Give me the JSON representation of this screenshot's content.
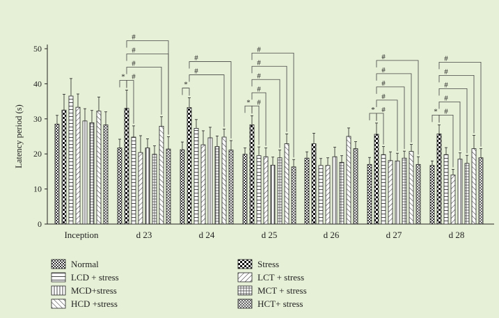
{
  "chart_data": {
    "type": "bar",
    "title": "",
    "xlabel": "",
    "ylabel": "Latency period (s)",
    "ylim": [
      0,
      50
    ],
    "yticks": [
      "0",
      "10",
      "20",
      "30",
      "40",
      "50"
    ],
    "categories": [
      "Inception",
      "d 23",
      "d 24",
      "d 25",
      "d 26",
      "d 27",
      "d 28"
    ],
    "legend_position": "bottom",
    "series": [
      {
        "name": "Normal",
        "pattern": "checker-fine",
        "values": [
          28.5,
          21.7,
          21.2,
          19.9,
          18.8,
          17.0,
          16.7
        ],
        "errors": [
          2.5,
          2.5,
          2.2,
          1.8,
          1.8,
          2.0,
          1.3
        ]
      },
      {
        "name": "Stress",
        "pattern": "checker-bold",
        "values": [
          32.5,
          33.0,
          33.2,
          28.3,
          22.9,
          25.6,
          25.7
        ],
        "errors": [
          4.5,
          5.2,
          2.8,
          2.6,
          3.0,
          3.2,
          2.6
        ]
      },
      {
        "name": "LCD + stress",
        "pattern": "hlines",
        "values": [
          36.5,
          24.8,
          27.3,
          19.5,
          16.7,
          19.8,
          19.8
        ],
        "errors": [
          5.0,
          3.2,
          2.5,
          2.5,
          2.0,
          2.3,
          2.0
        ]
      },
      {
        "name": "LCT + stress",
        "pattern": "diag-back",
        "values": [
          33.3,
          20.4,
          22.6,
          19.2,
          16.7,
          18.1,
          14.0
        ],
        "errors": [
          3.8,
          4.8,
          4.0,
          2.5,
          2.2,
          2.5,
          1.6
        ]
      },
      {
        "name": "MCD+stress",
        "pattern": "vlines",
        "values": [
          29.4,
          21.7,
          24.6,
          16.8,
          19.2,
          18.0,
          18.5
        ],
        "errors": [
          3.5,
          2.6,
          3.0,
          2.3,
          2.7,
          2.2,
          1.8
        ]
      },
      {
        "name": "MCT + stress",
        "pattern": "grid",
        "values": [
          28.9,
          19.9,
          22.1,
          18.9,
          17.6,
          18.8,
          17.3
        ],
        "errors": [
          3.5,
          2.4,
          3.0,
          2.2,
          1.9,
          2.0,
          2.3
        ]
      },
      {
        "name": "HCD +stress",
        "pattern": "diag-fwd",
        "values": [
          32.2,
          27.9,
          24.8,
          22.9,
          25.0,
          20.7,
          21.5
        ],
        "errors": [
          4.0,
          2.7,
          2.3,
          2.8,
          2.4,
          2.0,
          3.8
        ]
      },
      {
        "name": "HCT+ stress",
        "pattern": "crosshatch",
        "values": [
          28.3,
          21.4,
          21.1,
          16.3,
          21.5,
          17.0,
          18.9
        ],
        "errors": [
          3.7,
          3.5,
          2.7,
          2.1,
          2.0,
          2.2,
          2.6
        ]
      }
    ],
    "annotations": [
      {
        "category": "d 23",
        "from": "Normal",
        "to": "Stress",
        "label": "*",
        "level": 1
      },
      {
        "category": "d 23",
        "from": "Stress",
        "to": "LCD + stress",
        "label": "#",
        "level": 1
      },
      {
        "category": "d 23",
        "from": "Stress",
        "to": "HCD +stress",
        "label": "#",
        "level": 2
      },
      {
        "category": "d 23",
        "from": "Stress",
        "to": "HCT+ stress",
        "label": "#",
        "level": 3
      },
      {
        "category": "d 23",
        "from": "Stress",
        "to": "HCT+ stress",
        "label": "#",
        "level": 4
      },
      {
        "category": "d 24",
        "from": "Normal",
        "to": "Stress",
        "label": "*",
        "level": 1
      },
      {
        "category": "d 24",
        "from": "Stress",
        "to": "HCD +stress",
        "label": "#",
        "level": 2
      },
      {
        "category": "d 24",
        "from": "Stress",
        "to": "HCT+ stress",
        "label": "#",
        "level": 3
      },
      {
        "category": "d 25",
        "from": "Normal",
        "to": "Stress",
        "label": "*",
        "level": 1
      },
      {
        "category": "d 25",
        "from": "Stress",
        "to": "LCD + stress",
        "label": "#",
        "level": 1
      },
      {
        "category": "d 25",
        "from": "Stress",
        "to": "LCT + stress",
        "label": "#",
        "level": 2
      },
      {
        "category": "d 25",
        "from": "Stress",
        "to": "MCT + stress",
        "label": "#",
        "level": 3
      },
      {
        "category": "d 25",
        "from": "Stress",
        "to": "HCD +stress",
        "label": "#",
        "level": 4
      },
      {
        "category": "d 25",
        "from": "Stress",
        "to": "HCT+ stress",
        "label": "#",
        "level": 5
      },
      {
        "category": "d 27",
        "from": "Normal",
        "to": "Stress",
        "label": "*",
        "level": 1
      },
      {
        "category": "d 27",
        "from": "Stress",
        "to": "LCD + stress",
        "label": "#",
        "level": 1
      },
      {
        "category": "d 27",
        "from": "Stress",
        "to": "MCD+stress",
        "label": "#",
        "level": 2
      },
      {
        "category": "d 27",
        "from": "Stress",
        "to": "MCT + stress",
        "label": "#",
        "level": 3
      },
      {
        "category": "d 27",
        "from": "Stress",
        "to": "HCD +stress",
        "label": "#",
        "level": 4
      },
      {
        "category": "d 27",
        "from": "Stress",
        "to": "HCT+ stress",
        "label": "#",
        "level": 5
      },
      {
        "category": "d 28",
        "from": "Normal",
        "to": "Stress",
        "label": "*",
        "level": 1
      },
      {
        "category": "d 28",
        "from": "Stress",
        "to": "LCT + stress",
        "label": "#",
        "level": 1
      },
      {
        "category": "d 28",
        "from": "Stress",
        "to": "MCD+stress",
        "label": "#",
        "level": 2
      },
      {
        "category": "d 28",
        "from": "Stress",
        "to": "MCT + stress",
        "label": "#",
        "level": 3
      },
      {
        "category": "d 28",
        "from": "Stress",
        "to": "HCD +stress",
        "label": "#",
        "level": 4
      },
      {
        "category": "d 28",
        "from": "Stress",
        "to": "HCT+ stress",
        "label": "#",
        "level": 5
      }
    ],
    "legend_order": [
      "Normal",
      "Stress",
      "LCD + stress",
      "LCT + stress",
      "MCD+stress",
      "MCT + stress",
      "HCD +stress",
      "HCT+ stress"
    ]
  },
  "colors": {
    "background": "#e6f0d6",
    "ink": "#222222",
    "bar_fill": "#ffffff"
  }
}
